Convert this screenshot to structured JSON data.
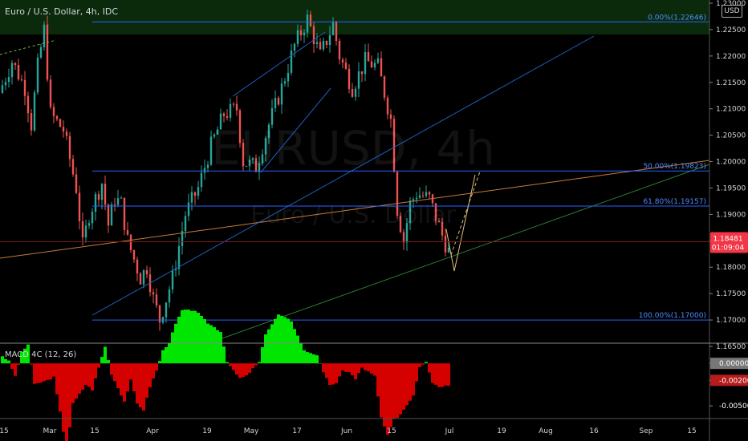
{
  "header": {
    "title": "Euro / U.S. Dollar, 4h, IDC",
    "currency": "USD"
  },
  "watermark": {
    "symbol": "EURUSD, 4h",
    "name": "Euro / U.S. Dollar"
  },
  "colors": {
    "bull": "#26a69a",
    "bear": "#ef5350",
    "fib": "#2962ff",
    "macdUp": "#00e600",
    "macdDown": "#d50000",
    "priceTag": "#f23645"
  },
  "chart_data": {
    "type": "candlestick",
    "title": "Euro / U.S. Dollar, 4h, IDC",
    "ylim": [
      1.165,
      1.23
    ],
    "yticks": [
      "1.23000",
      "1.22500",
      "1.22000",
      "1.21500",
      "1.21000",
      "1.20500",
      "1.20000",
      "1.19500",
      "1.19000",
      "1.18500",
      "1.18000",
      "1.17500",
      "1.17000",
      "1.16500"
    ],
    "xticks": [
      "15",
      "Mar",
      "15",
      "Apr",
      "19",
      "May",
      "17",
      "Jun",
      "15",
      "Jul",
      "19",
      "Aug",
      "16",
      "Sep",
      "15"
    ],
    "current_price": {
      "value": "1.18481",
      "countdown": "01:09:04"
    },
    "path": [
      [
        0,
        1.213
      ],
      [
        4,
        1.219
      ],
      [
        8,
        1.214
      ],
      [
        10,
        1.207
      ],
      [
        12,
        1.218
      ],
      [
        14,
        1.225
      ],
      [
        16,
        1.209
      ],
      [
        20,
        1.206
      ],
      [
        24,
        1.195
      ],
      [
        26,
        1.184
      ],
      [
        28,
        1.19
      ],
      [
        32,
        1.196
      ],
      [
        34,
        1.188
      ],
      [
        36,
        1.193
      ],
      [
        38,
        1.192
      ],
      [
        40,
        1.185
      ],
      [
        44,
        1.178
      ],
      [
        46,
        1.18
      ],
      [
        48,
        1.174
      ],
      [
        50,
        1.17
      ],
      [
        54,
        1.178
      ],
      [
        58,
        1.19
      ],
      [
        62,
        1.195
      ],
      [
        66,
        1.203
      ],
      [
        70,
        1.209
      ],
      [
        74,
        1.21
      ],
      [
        76,
        1.2
      ],
      [
        80,
        1.199
      ],
      [
        84,
        1.207
      ],
      [
        88,
        1.214
      ],
      [
        92,
        1.222
      ],
      [
        96,
        1.227
      ],
      [
        100,
        1.22
      ],
      [
        104,
        1.226
      ],
      [
        106,
        1.22
      ],
      [
        110,
        1.214
      ],
      [
        114,
        1.219
      ],
      [
        118,
        1.218
      ],
      [
        122,
        1.208
      ],
      [
        124,
        1.191
      ],
      [
        126,
        1.185
      ],
      [
        128,
        1.192
      ],
      [
        130,
        1.194
      ],
      [
        134,
        1.193
      ],
      [
        138,
        1.186
      ],
      [
        140,
        1.183
      ]
    ],
    "fib_levels": [
      {
        "label": "0.00%(1.22646)",
        "value": 1.22646
      },
      {
        "label": "50.00%(1.19823)",
        "value": 1.19823
      },
      {
        "label": "61.80%(1.19157)",
        "value": 1.19157
      },
      {
        "label": "100.00%(1.17000)",
        "value": 1.17
      }
    ],
    "macd": {
      "label": "MACD 4C (12, 26)",
      "ylim": [
        -0.0065,
        0.002
      ],
      "yticks": [
        "0.00000",
        "-0.00200",
        "-0.00500"
      ],
      "tags": [
        "0.00000",
        "-0.00200"
      ]
    }
  }
}
